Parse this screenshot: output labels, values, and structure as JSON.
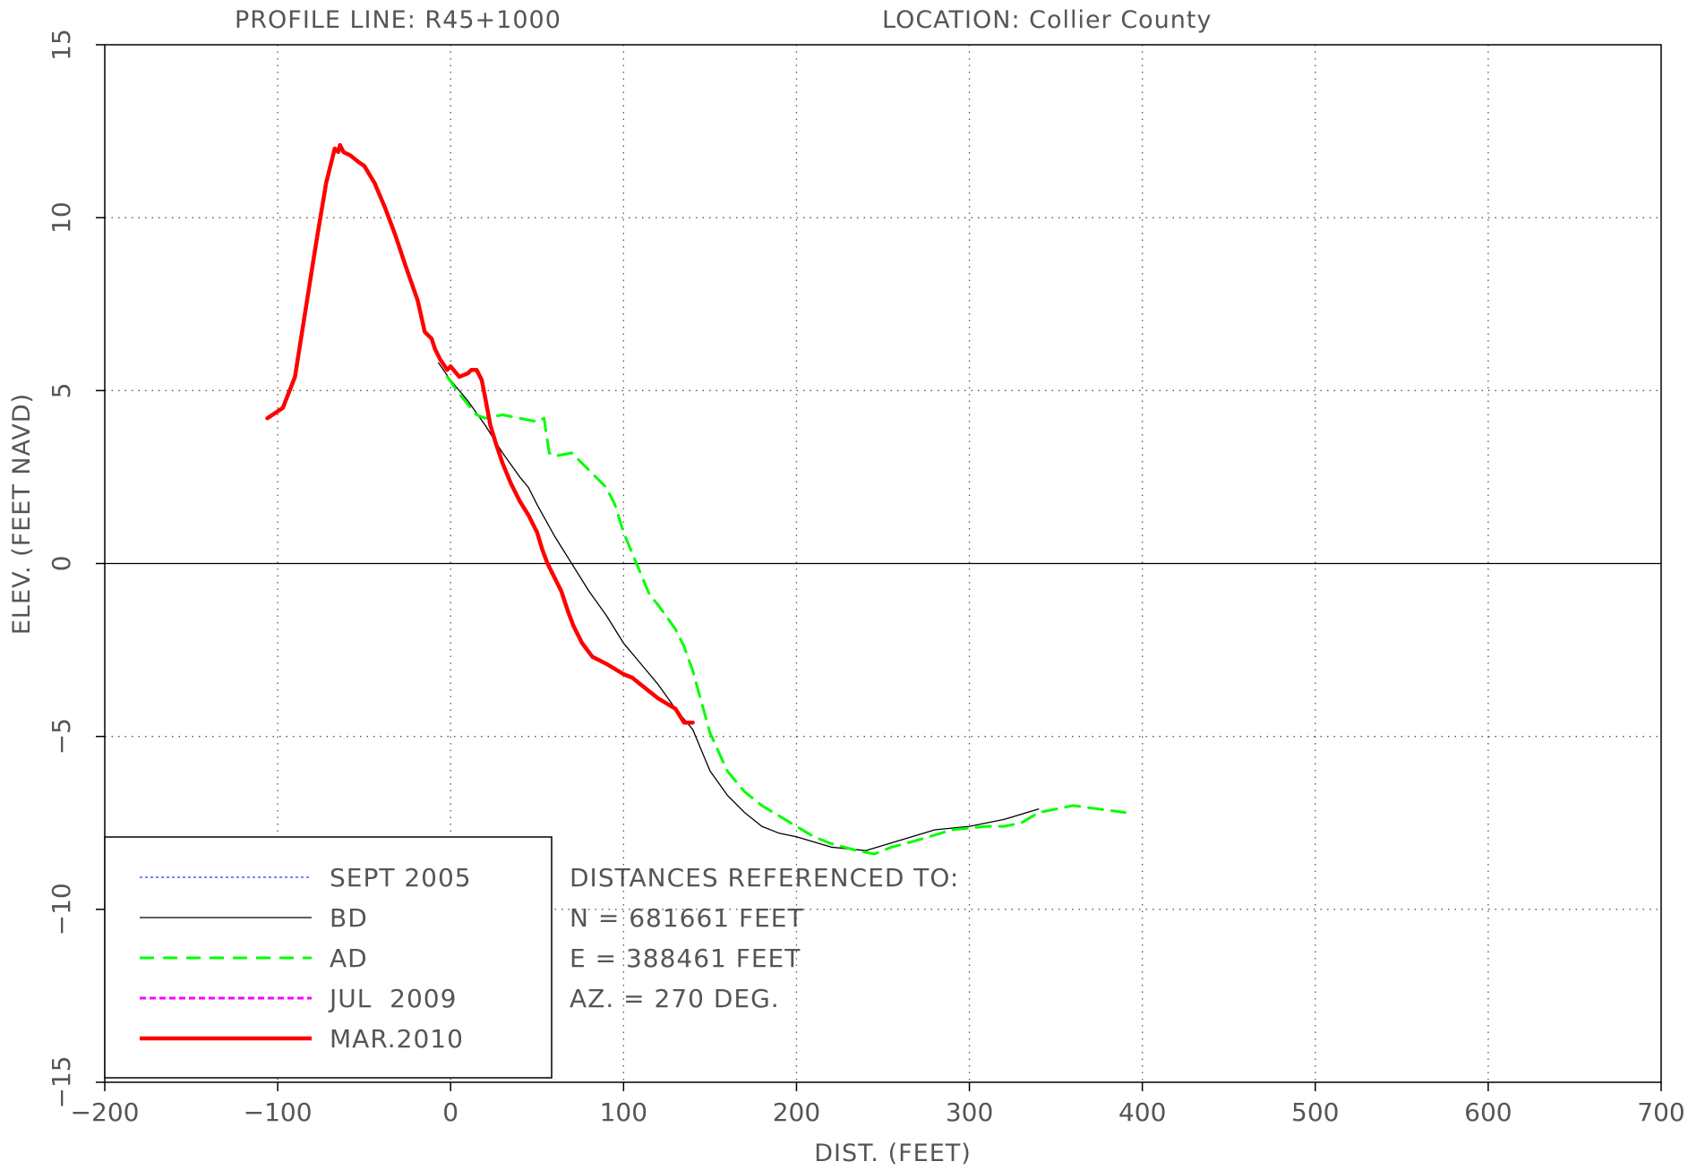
{
  "chart_data": {
    "type": "line",
    "title_left": "PROFILE LINE:  R45+1000",
    "title_right": "LOCATION:  Collier  County",
    "xlabel": "DIST.  (FEET)",
    "ylabel": "ELEV.  (FEET  NAVD)",
    "xlim": [
      -200,
      700
    ],
    "ylim": [
      -15,
      15
    ],
    "xticks": [
      -200,
      -100,
      0,
      100,
      200,
      300,
      400,
      500,
      600,
      700
    ],
    "yticks": [
      -15,
      -10,
      -5,
      0,
      5,
      10,
      15
    ],
    "xtick_labels": [
      "−200",
      "−100",
      "0",
      "100",
      "200",
      "300",
      "400",
      "500",
      "600",
      "700"
    ],
    "ytick_labels": [
      "−15",
      "−10",
      "−5",
      "0",
      "5",
      "10",
      "15"
    ],
    "grid": true,
    "legend_position": "bottom-left",
    "series": [
      {
        "name": "SEPT  2005",
        "color": "#4a5cff",
        "style": "dotted",
        "values": []
      },
      {
        "name": "BD",
        "color": "#000000",
        "style": "solid-thin",
        "x": [
          -7,
          0,
          10,
          20,
          30,
          40,
          45,
          50,
          60,
          70,
          80,
          90,
          100,
          110,
          120,
          130,
          140,
          150,
          160,
          170,
          180,
          190,
          200,
          220,
          240,
          260,
          280,
          300,
          320,
          340
        ],
        "values": [
          5.8,
          5.3,
          4.7,
          4.0,
          3.2,
          2.5,
          2.2,
          1.7,
          0.8,
          0.0,
          -0.8,
          -1.5,
          -2.3,
          -2.9,
          -3.5,
          -4.2,
          -4.8,
          -6.0,
          -6.7,
          -7.2,
          -7.6,
          -7.8,
          -7.9,
          -8.2,
          -8.3,
          -8.0,
          -7.7,
          -7.6,
          -7.4,
          -7.1
        ],
        "x_marks": [
          -7,
          0,
          10,
          20,
          30,
          40,
          45,
          50,
          60,
          70,
          80,
          90,
          100,
          110,
          120,
          130,
          140,
          150,
          160,
          170,
          180,
          190,
          200,
          220,
          240,
          260,
          280,
          300,
          320,
          340
        ]
      },
      {
        "name": "AD",
        "color": "#00ff00",
        "style": "dashed",
        "x": [
          -2,
          5,
          10,
          15,
          20,
          30,
          40,
          50,
          54,
          57,
          60,
          70,
          80,
          90,
          95,
          100,
          110,
          115,
          120,
          130,
          135,
          140,
          150,
          160,
          170,
          180,
          190,
          200,
          210,
          220,
          235,
          245,
          255,
          270,
          290,
          310,
          320,
          330,
          340,
          350,
          360,
          375,
          390
        ],
        "values": [
          5.4,
          4.9,
          4.6,
          4.3,
          4.2,
          4.3,
          4.2,
          4.1,
          4.2,
          3.2,
          3.1,
          3.2,
          2.7,
          2.2,
          1.7,
          0.9,
          -0.3,
          -0.9,
          -1.2,
          -1.9,
          -2.4,
          -3.1,
          -4.9,
          -6.0,
          -6.6,
          -7.0,
          -7.3,
          -7.6,
          -7.9,
          -8.1,
          -8.3,
          -8.4,
          -8.2,
          -8.0,
          -7.7,
          -7.6,
          -7.6,
          -7.5,
          -7.2,
          -7.1,
          -7.0,
          -7.1,
          -7.2
        ]
      },
      {
        "name": "JUL  2009",
        "color": "#ff00ff",
        "style": "dashed",
        "values": []
      },
      {
        "name": "MAR.2010",
        "color": "#ff0000",
        "style": "solid-thick",
        "x": [
          -106,
          -97,
          -90,
          -84,
          -78,
          -72,
          -67,
          -65,
          -64,
          -62,
          -58,
          -53,
          -50,
          -44,
          -38,
          -32,
          -26,
          -19,
          -15,
          -11,
          -9,
          -6,
          -2,
          0,
          5,
          10,
          12,
          15,
          18,
          20,
          23,
          26,
          30,
          35,
          40,
          45,
          50,
          53,
          56,
          60,
          64,
          68,
          71,
          76,
          82,
          90,
          100,
          105,
          110,
          120,
          130,
          135,
          140
        ],
        "values": [
          4.2,
          4.5,
          5.4,
          7.3,
          9.2,
          11.0,
          12.0,
          11.9,
          12.1,
          11.9,
          11.8,
          11.6,
          11.5,
          11.0,
          10.3,
          9.5,
          8.6,
          7.6,
          6.7,
          6.5,
          6.2,
          5.9,
          5.6,
          5.7,
          5.4,
          5.5,
          5.6,
          5.6,
          5.3,
          4.8,
          4.0,
          3.5,
          2.9,
          2.3,
          1.8,
          1.4,
          0.9,
          0.4,
          0.0,
          -0.4,
          -0.8,
          -1.4,
          -1.8,
          -2.3,
          -2.7,
          -2.9,
          -3.2,
          -3.3,
          -3.5,
          -3.9,
          -4.2,
          -4.6,
          -4.6
        ]
      }
    ],
    "reference": {
      "heading": "DISTANCES  REFERENCED  TO:",
      "north": "N  =  681661  FEET",
      "east": "E  =  388461  FEET",
      "azimuth": "AZ.  =  270  DEG."
    }
  }
}
